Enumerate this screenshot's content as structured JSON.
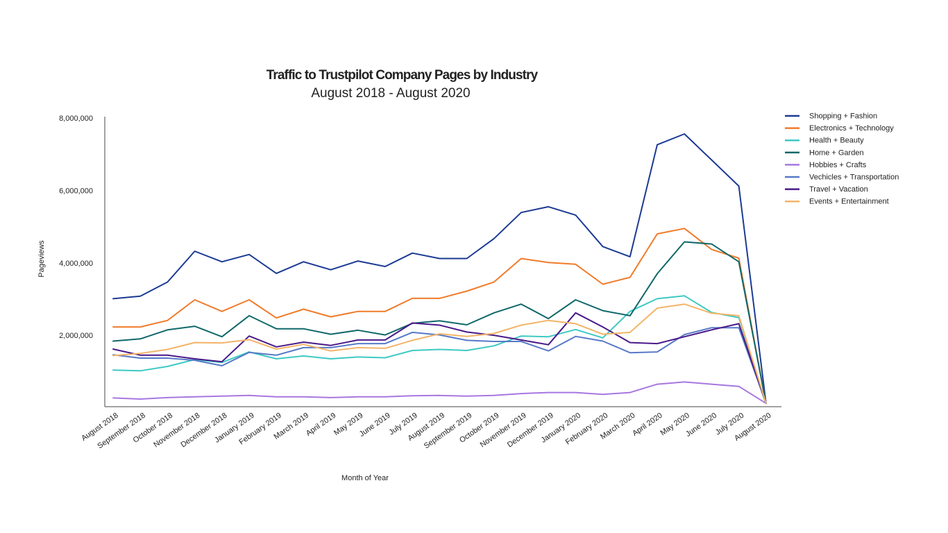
{
  "chart_data": {
    "type": "line",
    "title": "Traffic to Trustpilot Company Pages by Industry",
    "subtitle": "August 2018 - August 2020",
    "xlabel": "Month of Year",
    "ylabel": "Pageviews",
    "ylim": [
      0,
      8000000
    ],
    "yticks": [
      2000000,
      4000000,
      6000000,
      8000000
    ],
    "ytick_labels": [
      "2,000,000",
      "4,000,000",
      "6,000,000",
      "8,000,000"
    ],
    "grid": false,
    "legend_position": "top-right",
    "categories": [
      "August 2018",
      "September 2018",
      "October 2018",
      "November 2018",
      "December 2018",
      "January 2019",
      "February 2019",
      "March 2019",
      "April 2019",
      "May 2019",
      "June 2019",
      "July 2019",
      "August 2019",
      "September 2019",
      "October 2019",
      "November 2019",
      "December 2019",
      "January 2020",
      "February 2020",
      "March 2020",
      "April 2020",
      "May 2020",
      "June 2020",
      "July 2020",
      "August 2020"
    ],
    "series": [
      {
        "name": "Shopping + Fashion",
        "color": "#1b3a93",
        "values": [
          3010000,
          3080000,
          3470000,
          4320000,
          4030000,
          4230000,
          3710000,
          4030000,
          3810000,
          4050000,
          3900000,
          4270000,
          4120000,
          4120000,
          4670000,
          5390000,
          5550000,
          5320000,
          4450000,
          4170000,
          7260000,
          7560000,
          6840000,
          6120000,
          120000
        ]
      },
      {
        "name": "Electronics + Technology",
        "color": "#f07b2a",
        "values": [
          2230000,
          2230000,
          2410000,
          2980000,
          2660000,
          2980000,
          2480000,
          2720000,
          2510000,
          2660000,
          2660000,
          3020000,
          3020000,
          3220000,
          3470000,
          4120000,
          4010000,
          3960000,
          3410000,
          3600000,
          4800000,
          4950000,
          4370000,
          4130000,
          120000
        ]
      },
      {
        "name": "Health + Beauty",
        "color": "#3dc9c3",
        "values": [
          1040000,
          1020000,
          1140000,
          1330000,
          1250000,
          1540000,
          1350000,
          1430000,
          1350000,
          1400000,
          1380000,
          1580000,
          1610000,
          1580000,
          1710000,
          1980000,
          1960000,
          2160000,
          1930000,
          2660000,
          3010000,
          3090000,
          2630000,
          2490000,
          120000
        ]
      },
      {
        "name": "Home + Garden",
        "color": "#10686a",
        "values": [
          1840000,
          1900000,
          2150000,
          2250000,
          1960000,
          2540000,
          2180000,
          2180000,
          2030000,
          2140000,
          2010000,
          2330000,
          2400000,
          2290000,
          2620000,
          2860000,
          2460000,
          2980000,
          2680000,
          2540000,
          3700000,
          4580000,
          4520000,
          4030000,
          120000
        ]
      },
      {
        "name": "Hobbies + Crafts",
        "color": "#a777e0",
        "values": [
          270000,
          240000,
          280000,
          300000,
          320000,
          340000,
          300000,
          300000,
          280000,
          300000,
          300000,
          330000,
          340000,
          320000,
          340000,
          390000,
          420000,
          420000,
          370000,
          420000,
          650000,
          710000,
          650000,
          590000,
          120000
        ]
      },
      {
        "name": "Vechicles + Transportation",
        "color": "#5779c7",
        "values": [
          1460000,
          1370000,
          1370000,
          1310000,
          1160000,
          1530000,
          1450000,
          1660000,
          1660000,
          1770000,
          1770000,
          2080000,
          2010000,
          1860000,
          1830000,
          1830000,
          1570000,
          1970000,
          1840000,
          1520000,
          1540000,
          2020000,
          2210000,
          2210000,
          120000
        ]
      },
      {
        "name": "Travel + Vacation",
        "color": "#4a1889",
        "values": [
          1620000,
          1450000,
          1450000,
          1350000,
          1270000,
          1980000,
          1680000,
          1810000,
          1720000,
          1870000,
          1870000,
          2340000,
          2280000,
          2090000,
          2000000,
          1870000,
          1740000,
          2620000,
          2230000,
          1800000,
          1770000,
          1960000,
          2150000,
          2320000,
          120000
        ]
      },
      {
        "name": "Events + Entertainment",
        "color": "#f3b468",
        "values": [
          1440000,
          1500000,
          1610000,
          1800000,
          1790000,
          1880000,
          1620000,
          1750000,
          1570000,
          1660000,
          1640000,
          1860000,
          2040000,
          1970000,
          2050000,
          2280000,
          2410000,
          2320000,
          2030000,
          2080000,
          2750000,
          2860000,
          2610000,
          2540000,
          120000
        ]
      }
    ]
  }
}
